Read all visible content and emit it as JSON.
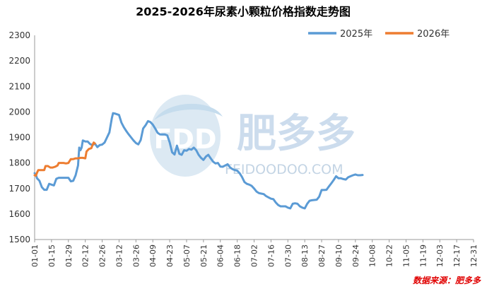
{
  "chart_data": {
    "type": "line",
    "title": "2025-2026年尿素小颗粒价格指数走势图",
    "ylim": [
      1500,
      2300
    ],
    "yticks": [
      1500,
      1600,
      1700,
      1800,
      1900,
      2000,
      2100,
      2200,
      2300
    ],
    "xticks": [
      "01-01",
      "01-15",
      "01-29",
      "02-12",
      "02-26",
      "03-12",
      "03-26",
      "04-09",
      "04-23",
      "05-07",
      "05-21",
      "06-04",
      "06-18",
      "07-02",
      "07-16",
      "07-30",
      "08-13",
      "08-27",
      "09-10",
      "09-24",
      "10-08",
      "10-22",
      "11-05",
      "11-19",
      "12-03",
      "12-17",
      "12-31"
    ],
    "grid": false,
    "legend_position": "top-right",
    "series": [
      {
        "name": "2025年",
        "color": "#5b9bd5",
        "points": [
          [
            0,
            1760
          ],
          [
            1,
            1755
          ],
          [
            2,
            1740
          ],
          [
            4,
            1730
          ],
          [
            6,
            1705
          ],
          [
            8,
            1695
          ],
          [
            10,
            1695
          ],
          [
            12,
            1718
          ],
          [
            14,
            1715
          ],
          [
            16,
            1712
          ],
          [
            18,
            1738
          ],
          [
            20,
            1742
          ],
          [
            22,
            1742
          ],
          [
            24,
            1742
          ],
          [
            26,
            1742
          ],
          [
            28,
            1742
          ],
          [
            30,
            1728
          ],
          [
            32,
            1730
          ],
          [
            34,
            1752
          ],
          [
            36,
            1790
          ],
          [
            37,
            1860
          ],
          [
            38,
            1850
          ],
          [
            39,
            1860
          ],
          [
            40,
            1888
          ],
          [
            42,
            1884
          ],
          [
            44,
            1884
          ],
          [
            46,
            1874
          ],
          [
            48,
            1870
          ],
          [
            50,
            1876
          ],
          [
            52,
            1862
          ],
          [
            54,
            1870
          ],
          [
            56,
            1872
          ],
          [
            58,
            1880
          ],
          [
            60,
            1900
          ],
          [
            62,
            1920
          ],
          [
            63,
            1948
          ],
          [
            64,
            1975
          ],
          [
            65,
            1995
          ],
          [
            67,
            1993
          ],
          [
            70,
            1988
          ],
          [
            72,
            1958
          ],
          [
            74,
            1940
          ],
          [
            76,
            1925
          ],
          [
            78,
            1912
          ],
          [
            80,
            1900
          ],
          [
            82,
            1888
          ],
          [
            84,
            1878
          ],
          [
            86,
            1873
          ],
          [
            88,
            1890
          ],
          [
            90,
            1935
          ],
          [
            92,
            1948
          ],
          [
            94,
            1964
          ],
          [
            96,
            1960
          ],
          [
            98,
            1950
          ],
          [
            100,
            1935
          ],
          [
            102,
            1918
          ],
          [
            104,
            1912
          ],
          [
            106,
            1912
          ],
          [
            108,
            1912
          ],
          [
            110,
            1908
          ],
          [
            112,
            1880
          ],
          [
            114,
            1842
          ],
          [
            116,
            1833
          ],
          [
            118,
            1868
          ],
          [
            120,
            1836
          ],
          [
            122,
            1832
          ],
          [
            124,
            1850
          ],
          [
            126,
            1848
          ],
          [
            128,
            1855
          ],
          [
            130,
            1852
          ],
          [
            132,
            1860
          ],
          [
            134,
            1850
          ],
          [
            136,
            1832
          ],
          [
            138,
            1820
          ],
          [
            140,
            1812
          ],
          [
            142,
            1825
          ],
          [
            144,
            1832
          ],
          [
            146,
            1818
          ],
          [
            148,
            1805
          ],
          [
            150,
            1798
          ],
          [
            152,
            1800
          ],
          [
            154,
            1786
          ],
          [
            156,
            1785
          ],
          [
            158,
            1790
          ],
          [
            160,
            1795
          ],
          [
            162,
            1783
          ],
          [
            164,
            1776
          ],
          [
            166,
            1772
          ],
          [
            168,
            1770
          ],
          [
            170,
            1760
          ],
          [
            172,
            1745
          ],
          [
            174,
            1725
          ],
          [
            176,
            1718
          ],
          [
            178,
            1715
          ],
          [
            180,
            1710
          ],
          [
            182,
            1700
          ],
          [
            184,
            1688
          ],
          [
            186,
            1682
          ],
          [
            188,
            1680
          ],
          [
            190,
            1678
          ],
          [
            192,
            1670
          ],
          [
            194,
            1665
          ],
          [
            196,
            1660
          ],
          [
            198,
            1658
          ],
          [
            200,
            1645
          ],
          [
            202,
            1635
          ],
          [
            204,
            1630
          ],
          [
            206,
            1630
          ],
          [
            208,
            1630
          ],
          [
            210,
            1625
          ],
          [
            212,
            1622
          ],
          [
            214,
            1640
          ],
          [
            216,
            1642
          ],
          [
            218,
            1640
          ],
          [
            220,
            1630
          ],
          [
            222,
            1625
          ],
          [
            224,
            1622
          ],
          [
            226,
            1640
          ],
          [
            228,
            1652
          ],
          [
            230,
            1654
          ],
          [
            232,
            1655
          ],
          [
            234,
            1656
          ],
          [
            236,
            1668
          ],
          [
            238,
            1694
          ],
          [
            240,
            1694
          ],
          [
            242,
            1695
          ],
          [
            244,
            1708
          ],
          [
            246,
            1720
          ],
          [
            248,
            1733
          ],
          [
            250,
            1748
          ],
          [
            252,
            1740
          ],
          [
            254,
            1740
          ],
          [
            256,
            1737
          ],
          [
            258,
            1735
          ],
          [
            260,
            1744
          ],
          [
            262,
            1748
          ],
          [
            264,
            1752
          ],
          [
            266,
            1755
          ],
          [
            268,
            1752
          ],
          [
            270,
            1752
          ],
          [
            272,
            1753
          ]
        ]
      },
      {
        "name": "2026年",
        "color": "#ed7d31",
        "points": [
          [
            0,
            1752
          ],
          [
            1,
            1750
          ],
          [
            2,
            1762
          ],
          [
            3,
            1772
          ],
          [
            5,
            1772
          ],
          [
            7,
            1772
          ],
          [
            8,
            1772
          ],
          [
            9,
            1788
          ],
          [
            11,
            1788
          ],
          [
            13,
            1782
          ],
          [
            15,
            1782
          ],
          [
            17,
            1785
          ],
          [
            19,
            1790
          ],
          [
            20,
            1800
          ],
          [
            22,
            1800
          ],
          [
            24,
            1800
          ],
          [
            26,
            1798
          ],
          [
            28,
            1800
          ],
          [
            30,
            1815
          ],
          [
            32,
            1815
          ],
          [
            34,
            1818
          ],
          [
            36,
            1818
          ],
          [
            38,
            1820
          ],
          [
            40,
            1820
          ],
          [
            42,
            1818
          ],
          [
            43,
            1845
          ],
          [
            45,
            1855
          ],
          [
            47,
            1858
          ],
          [
            48,
            1870
          ],
          [
            49,
            1880
          ],
          [
            50,
            1876
          ]
        ]
      }
    ]
  },
  "watermark": {
    "logo_text": "FDD",
    "brand": "肥多多",
    "url": "FEIDOODOO.COM"
  },
  "source": "数据来源：肥多多"
}
